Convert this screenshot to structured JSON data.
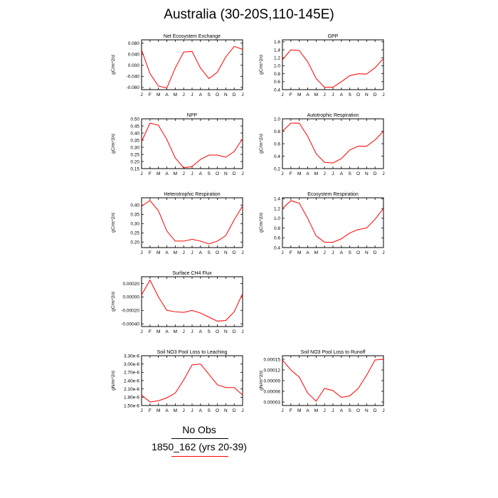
{
  "title": "Australia (30-20S,110-145E)",
  "legend": {
    "no_obs": "No Obs",
    "run": "1850_162 (yrs 20-39)",
    "line_color": "#ff0000"
  },
  "chart_data": [
    {
      "type": "line",
      "title": "Net Ecosystem Exchange",
      "ylabel": "gC/m^2/d",
      "categories": [
        "J",
        "F",
        "M",
        "A",
        "M",
        "J",
        "J",
        "A",
        "S",
        "O",
        "N",
        "D",
        "J"
      ],
      "ylim": [
        -0.088,
        0.092
      ],
      "yticks": [
        -0.08,
        -0.04,
        0.0,
        0.04,
        0.08
      ],
      "yticklabels": [
        "-0.080",
        "-0.040",
        "0.000",
        "0.040",
        "0.080"
      ],
      "values": [
        0.055,
        -0.03,
        -0.075,
        -0.082,
        -0.01,
        0.048,
        0.05,
        -0.01,
        -0.048,
        -0.025,
        0.03,
        0.068,
        0.058
      ]
    },
    {
      "type": "line",
      "title": "GPP",
      "ylabel": "gC/m^2/d",
      "categories": [
        "J",
        "F",
        "M",
        "A",
        "M",
        "J",
        "J",
        "A",
        "S",
        "O",
        "N",
        "D",
        "J"
      ],
      "ylim": [
        0.4,
        1.65
      ],
      "yticks": [
        0.4,
        0.6,
        0.8,
        1.0,
        1.2,
        1.4,
        1.6
      ],
      "yticklabels": [
        "0.4",
        "0.6",
        "0.8",
        "1.0",
        "1.2",
        "1.4",
        "1.6"
      ],
      "values": [
        1.15,
        1.4,
        1.38,
        1.1,
        0.68,
        0.46,
        0.46,
        0.6,
        0.75,
        0.8,
        0.79,
        0.95,
        1.18
      ]
    },
    {
      "type": "line",
      "title": "NPP",
      "ylabel": "gC/m^2/d",
      "categories": [
        "J",
        "F",
        "M",
        "A",
        "M",
        "J",
        "J",
        "A",
        "S",
        "O",
        "N",
        "D",
        "J"
      ],
      "ylim": [
        0.15,
        0.5
      ],
      "yticks": [
        0.15,
        0.2,
        0.25,
        0.3,
        0.35,
        0.4,
        0.45,
        0.5
      ],
      "yticklabels": [
        "0.15",
        "0.20",
        "0.25",
        "0.30",
        "0.35",
        "0.40",
        "0.45",
        "0.50"
      ],
      "values": [
        0.34,
        0.47,
        0.455,
        0.355,
        0.225,
        0.155,
        0.165,
        0.215,
        0.245,
        0.245,
        0.23,
        0.27,
        0.36
      ]
    },
    {
      "type": "line",
      "title": "Autotrophic Respiration",
      "ylabel": "gC/m^2/d",
      "categories": [
        "J",
        "F",
        "M",
        "A",
        "M",
        "J",
        "J",
        "A",
        "S",
        "O",
        "N",
        "D",
        "J"
      ],
      "ylim": [
        0.2,
        1.0
      ],
      "yticks": [
        0.2,
        0.4,
        0.6,
        0.8,
        1.0
      ],
      "yticklabels": [
        "0.2",
        "0.4",
        "0.6",
        "0.8",
        "1.0"
      ],
      "values": [
        0.8,
        0.93,
        0.93,
        0.72,
        0.44,
        0.3,
        0.29,
        0.36,
        0.5,
        0.56,
        0.56,
        0.66,
        0.8
      ]
    },
    {
      "type": "line",
      "title": "Heterotrophic Respiration",
      "ylabel": "gC/m^2/d",
      "categories": [
        "J",
        "F",
        "M",
        "A",
        "M",
        "J",
        "J",
        "A",
        "S",
        "O",
        "N",
        "D",
        "J"
      ],
      "ylim": [
        0.17,
        0.44
      ],
      "yticks": [
        0.2,
        0.25,
        0.3,
        0.35,
        0.4
      ],
      "yticklabels": [
        "0.20",
        "0.25",
        "0.30",
        "0.35",
        "0.40"
      ],
      "values": [
        0.395,
        0.425,
        0.37,
        0.26,
        0.205,
        0.205,
        0.215,
        0.205,
        0.19,
        0.205,
        0.235,
        0.32,
        0.395
      ]
    },
    {
      "type": "line",
      "title": "Ecosystem Respiration",
      "ylabel": "gC/m^2/d",
      "categories": [
        "J",
        "F",
        "M",
        "A",
        "M",
        "J",
        "J",
        "A",
        "S",
        "O",
        "N",
        "D",
        "J"
      ],
      "ylim": [
        0.4,
        1.42
      ],
      "yticks": [
        0.4,
        0.6,
        0.8,
        1.0,
        1.2,
        1.4
      ],
      "yticklabels": [
        "0.4",
        "0.6",
        "0.8",
        "1.0",
        "1.2",
        "1.4"
      ],
      "values": [
        1.2,
        1.36,
        1.31,
        1.0,
        0.64,
        0.51,
        0.51,
        0.58,
        0.7,
        0.77,
        0.8,
        0.98,
        1.2
      ]
    },
    {
      "type": "line",
      "title": "Surface CH4 Flux",
      "ylabel": "gC/m^2/d",
      "categories": [
        "J",
        "F",
        "M",
        "A",
        "M",
        "J",
        "J",
        "A",
        "S",
        "O",
        "N",
        "D",
        "J"
      ],
      "ylim": [
        -0.00044,
        0.0003
      ],
      "yticks": [
        -0.0004,
        -0.0002,
        0.0,
        0.0002
      ],
      "yticklabels": [
        "-0.00040",
        "-0.00020",
        "0.00000",
        "0.00020"
      ],
      "values": [
        3e-05,
        0.00025,
        0.0,
        -0.0002,
        -0.00022,
        -0.00023,
        -0.0002,
        -0.00024,
        -0.0003,
        -0.00036,
        -0.00035,
        -0.00022,
        5e-05
      ]
    },
    {
      "type": "line",
      "title": "Soil NO3 Pool Loss to Leaching",
      "ylabel": "gN/m^2/d",
      "categories": [
        "J",
        "F",
        "M",
        "A",
        "M",
        "J",
        "J",
        "A",
        "S",
        "O",
        "N",
        "D",
        "J"
      ],
      "ylim": [
        1.5e-06,
        3.3e-06
      ],
      "yticks": [
        1.5e-06,
        1.8e-06,
        2.1e-06,
        2.4e-06,
        2.7e-06,
        3e-06,
        3.3e-06
      ],
      "yticklabels": [
        "1.50e-6",
        "1.80e-6",
        "2.10e-6",
        "2.40e-6",
        "2.70e-6",
        "3.00e-6",
        "3.30e-6"
      ],
      "values": [
        1.88e-06,
        1.63e-06,
        1.67e-06,
        1.78e-06,
        1.95e-06,
        2.42e-06,
        2.97e-06,
        3e-06,
        2.63e-06,
        2.25e-06,
        2.15e-06,
        2.15e-06,
        1.88e-06
      ]
    },
    {
      "type": "line",
      "title": "Soil NO3 Pool Loss to Runoff",
      "ylabel": "gN/m^2/d",
      "categories": [
        "J",
        "F",
        "M",
        "A",
        "M",
        "J",
        "J",
        "A",
        "S",
        "O",
        "N",
        "D",
        "J"
      ],
      "ylim": [
        2e-05,
        0.00016
      ],
      "yticks": [
        3e-05,
        6e-05,
        9e-05,
        0.00012,
        0.00015
      ],
      "yticklabels": [
        "0.00003",
        "0.00006",
        "0.00009",
        "0.00012",
        "0.00015"
      ],
      "values": [
        0.000148,
        0.00012,
        0.0001,
        5.5e-05,
        3.2e-05,
        6.8e-05,
        6.2e-05,
        4.3e-05,
        4.7e-05,
        6.8e-05,
        0.000105,
        0.000148,
        0.00015
      ]
    }
  ]
}
